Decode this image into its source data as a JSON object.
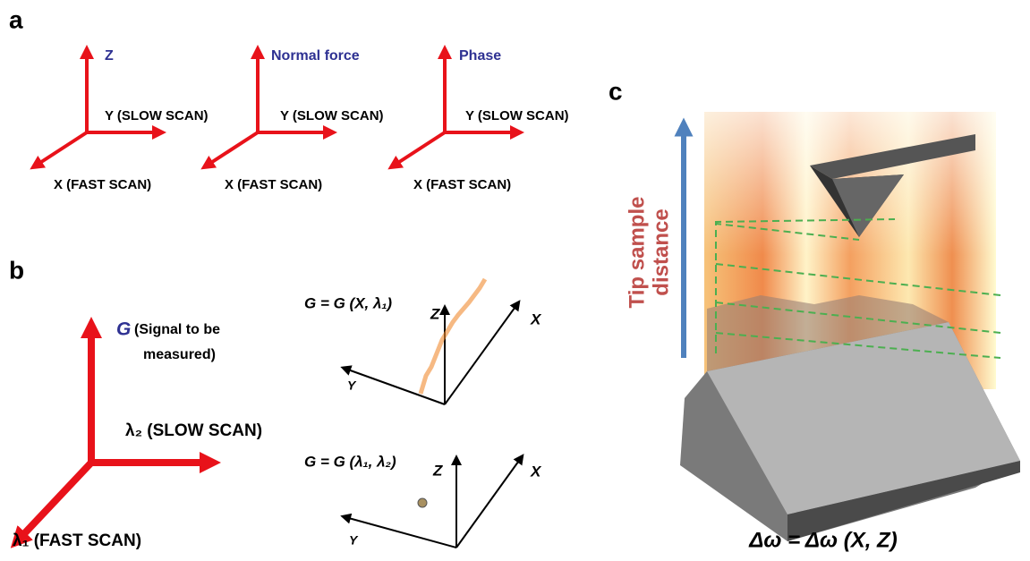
{
  "panels": {
    "a": {
      "label": "a",
      "axes": [
        {
          "z": "Z",
          "y": "Y (SLOW SCAN)",
          "x": "X (FAST  SCAN)"
        },
        {
          "z": "Normal force",
          "y": "Y (SLOW SCAN)",
          "x": "X (FAST  SCAN)"
        },
        {
          "z": "Phase",
          "y": "Y (SLOW SCAN)",
          "x": "X (FAST  SCAN)"
        }
      ]
    },
    "b": {
      "label": "b",
      "g": "G",
      "signal": [
        "(Signal to be",
        "measured)"
      ],
      "slow": "λ₂ (SLOW SCAN)",
      "fast": "λ₁ (FAST SCAN)",
      "plots": [
        {
          "equation": "G = G (X, λ₁)",
          "z": "Z",
          "x": "X",
          "y": "Y"
        },
        {
          "equation": "G = G (λ₁, λ₂)",
          "z": "Z",
          "x": "X",
          "y": "Y"
        }
      ]
    },
    "c": {
      "label": "c",
      "axis_label": [
        "Tip sample",
        "distance"
      ],
      "equation": "Δω = Δω (X, Z)"
    }
  }
}
